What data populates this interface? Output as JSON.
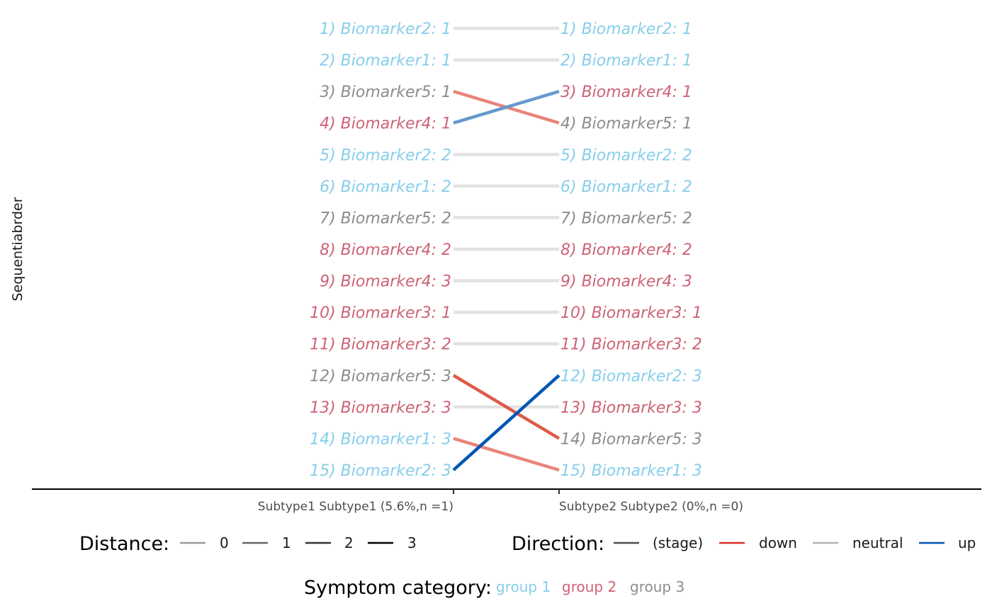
{
  "chart_data": {
    "type": "slopegraph",
    "ylabel": "Sequentiabrder",
    "x_ticks": [
      "Subtype1 Subtype1 (5.6%,n =1)",
      "Subtype2 Subtype2 (0%,n =0)"
    ],
    "colors": {
      "group 1": "#87ceeb",
      "group 2": "#cd6375",
      "group 3": "#8c8c8c",
      "up_strong": "#0057b3",
      "up_light": "#6699cc",
      "down_strong": "#de5a4a",
      "down_light": "#e8857b",
      "neutral": "#e2e2e2"
    },
    "left_stages": [
      {
        "label": "1) Biomarker2: 1",
        "group": "group 1"
      },
      {
        "label": "2) Biomarker1: 1",
        "group": "group 1"
      },
      {
        "label": "3) Biomarker5: 1",
        "group": "group 3"
      },
      {
        "label": "4) Biomarker4: 1",
        "group": "group 2"
      },
      {
        "label": "5) Biomarker2: 2",
        "group": "group 1"
      },
      {
        "label": "6) Biomarker1: 2",
        "group": "group 1"
      },
      {
        "label": "7) Biomarker5: 2",
        "group": "group 3"
      },
      {
        "label": "8) Biomarker4: 2",
        "group": "group 2"
      },
      {
        "label": "9) Biomarker4: 3",
        "group": "group 2"
      },
      {
        "label": "10) Biomarker3: 1",
        "group": "group 2"
      },
      {
        "label": "11) Biomarker3: 2",
        "group": "group 2"
      },
      {
        "label": "12) Biomarker5: 3",
        "group": "group 3"
      },
      {
        "label": "13) Biomarker3: 3",
        "group": "group 2"
      },
      {
        "label": "14) Biomarker1: 3",
        "group": "group 1"
      },
      {
        "label": "15) Biomarker2: 3",
        "group": "group 1"
      }
    ],
    "right_stages": [
      {
        "label": "1) Biomarker2: 1",
        "group": "group 1"
      },
      {
        "label": "2) Biomarker1: 1",
        "group": "group 1"
      },
      {
        "label": "3) Biomarker4: 1",
        "group": "group 2"
      },
      {
        "label": "4) Biomarker5: 1",
        "group": "group 3"
      },
      {
        "label": "5) Biomarker2: 2",
        "group": "group 1"
      },
      {
        "label": "6) Biomarker1: 2",
        "group": "group 1"
      },
      {
        "label": "7) Biomarker5: 2",
        "group": "group 3"
      },
      {
        "label": "8) Biomarker4: 2",
        "group": "group 2"
      },
      {
        "label": "9) Biomarker4: 3",
        "group": "group 2"
      },
      {
        "label": "10) Biomarker3: 1",
        "group": "group 2"
      },
      {
        "label": "11) Biomarker3: 2",
        "group": "group 2"
      },
      {
        "label": "12) Biomarker2: 3",
        "group": "group 1"
      },
      {
        "label": "13) Biomarker3: 3",
        "group": "group 2"
      },
      {
        "label": "14) Biomarker5: 3",
        "group": "group 3"
      },
      {
        "label": "15) Biomarker1: 3",
        "group": "group 1"
      }
    ],
    "connections": [
      {
        "from": 1,
        "to": 1,
        "direction": "neutral",
        "distance": 0
      },
      {
        "from": 2,
        "to": 2,
        "direction": "neutral",
        "distance": 0
      },
      {
        "from": 3,
        "to": 4,
        "direction": "down",
        "distance": 1
      },
      {
        "from": 4,
        "to": 3,
        "direction": "up",
        "distance": 1
      },
      {
        "from": 5,
        "to": 5,
        "direction": "neutral",
        "distance": 0
      },
      {
        "from": 6,
        "to": 6,
        "direction": "neutral",
        "distance": 0
      },
      {
        "from": 7,
        "to": 7,
        "direction": "neutral",
        "distance": 0
      },
      {
        "from": 8,
        "to": 8,
        "direction": "neutral",
        "distance": 0
      },
      {
        "from": 9,
        "to": 9,
        "direction": "neutral",
        "distance": 0
      },
      {
        "from": 10,
        "to": 10,
        "direction": "neutral",
        "distance": 0
      },
      {
        "from": 11,
        "to": 11,
        "direction": "neutral",
        "distance": 0
      },
      {
        "from": 12,
        "to": 14,
        "direction": "down",
        "distance": 2
      },
      {
        "from": 13,
        "to": 13,
        "direction": "neutral",
        "distance": 0
      },
      {
        "from": 14,
        "to": 15,
        "direction": "down",
        "distance": 1
      },
      {
        "from": 15,
        "to": 12,
        "direction": "up",
        "distance": 3
      }
    ]
  },
  "legend": {
    "distance_title": "Distance:",
    "distance_keys": [
      {
        "label": "0",
        "color": "#999999"
      },
      {
        "label": "1",
        "color": "#666666"
      },
      {
        "label": "2",
        "color": "#333333"
      },
      {
        "label": "3",
        "color": "#000000"
      }
    ],
    "direction_title": "Direction:",
    "direction_keys": [
      {
        "label": "(stage)",
        "color": "#4d4d4d"
      },
      {
        "label": "down",
        "color": "#d73027"
      },
      {
        "label": "neutral",
        "color": "#b3b3b3"
      },
      {
        "label": "up",
        "color": "#0057b3"
      }
    ],
    "category_title": "Symptom category:",
    "categories": [
      {
        "label": "group 1",
        "color": "#87ceeb"
      },
      {
        "label": "group 2",
        "color": "#cd6375"
      },
      {
        "label": "group 3",
        "color": "#8c8c8c"
      }
    ]
  }
}
